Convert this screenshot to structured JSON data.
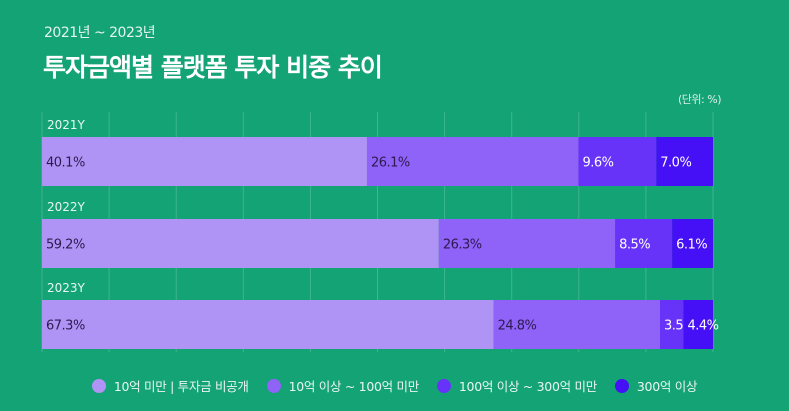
{
  "subtitle": "2021년 ~ 2023년",
  "title": "투자금액별 플랫폼 투자 비중 추이",
  "unit": "(단위: %)",
  "chart_data": {
    "type": "bar",
    "orientation": "horizontal-stacked-100",
    "categories": [
      "2021Y",
      "2022Y",
      "2023Y"
    ],
    "series": [
      {
        "name": "10억 미만 | 투자금 비공개",
        "color": "#b094f5",
        "values": [
          40.1,
          59.2,
          67.3
        ]
      },
      {
        "name": "10억 이상 ~ 100억 미만",
        "color": "#8f62f8",
        "values": [
          26.1,
          26.3,
          24.8
        ]
      },
      {
        "name": "100억 이상 ~ 300억 미만",
        "color": "#6733f9",
        "values": [
          9.6,
          8.5,
          3.5
        ]
      },
      {
        "name": "300억 이상",
        "color": "#4510f5",
        "values": [
          7.0,
          6.1,
          4.4
        ]
      }
    ],
    "xlim": [
      0,
      100
    ],
    "grid": true,
    "legend": "bottom"
  }
}
